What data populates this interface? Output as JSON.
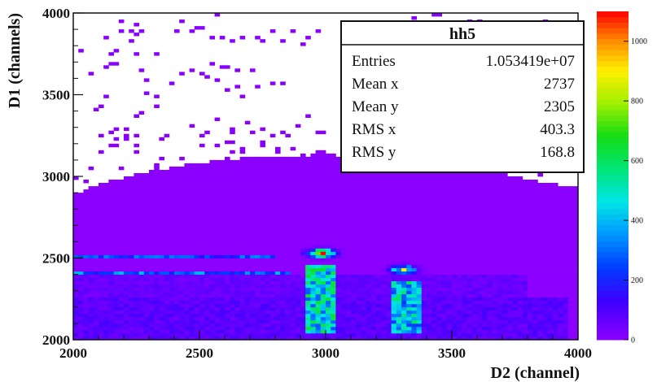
{
  "chart_data": {
    "type": "heatmap",
    "title": "",
    "xlabel": "D2 (channel)",
    "ylabel": "D1 (channels)",
    "xlim": [
      2000,
      4000
    ],
    "ylim": [
      2000,
      4000
    ],
    "x_ticks": [
      "2000",
      "2500",
      "3000",
      "3500",
      "4000"
    ],
    "y_ticks": [
      "2000",
      "2500",
      "3000",
      "3500",
      "4000"
    ],
    "z_range": [
      0,
      1100
    ],
    "z_ticks": [
      "0",
      "200",
      "400",
      "600",
      "800",
      "1000"
    ],
    "colorbar": "rainbow, violet (low) to red (high)",
    "stats_box": {
      "title": "hh5",
      "rows": [
        {
          "label": "Entries",
          "value": "1.053419e+07"
        },
        {
          "label": "Mean x",
          "value": "2737"
        },
        {
          "label": "Mean y",
          "value": "2305"
        },
        {
          "label": "RMS x",
          "value": "403.3"
        },
        {
          "label": "RMS y",
          "value": "168.8"
        }
      ]
    },
    "features": [
      {
        "name": "band",
        "x": [
          2000,
          3950
        ],
        "y": [
          2000,
          2250
        ],
        "level": 80
      },
      {
        "name": "band",
        "x": [
          2000,
          3800
        ],
        "y": [
          2250,
          2400
        ],
        "level": 60
      },
      {
        "name": "line",
        "x": [
          2000,
          2850
        ],
        "y": [
          2400,
          2420
        ],
        "level": 280
      },
      {
        "name": "line",
        "x": [
          2000,
          2800
        ],
        "y": [
          2500,
          2520
        ],
        "level": 240
      },
      {
        "name": "column",
        "x": [
          2920,
          3040
        ],
        "y": [
          2050,
          2450
        ],
        "level": 450
      },
      {
        "name": "column",
        "x": [
          3260,
          3380
        ],
        "y": [
          2050,
          2350
        ],
        "level": 420
      },
      {
        "name": "peak",
        "x": 2985,
        "y": 2530,
        "level": 1050
      },
      {
        "name": "peak",
        "x": 3310,
        "y": 2430,
        "level": 700
      }
    ]
  }
}
